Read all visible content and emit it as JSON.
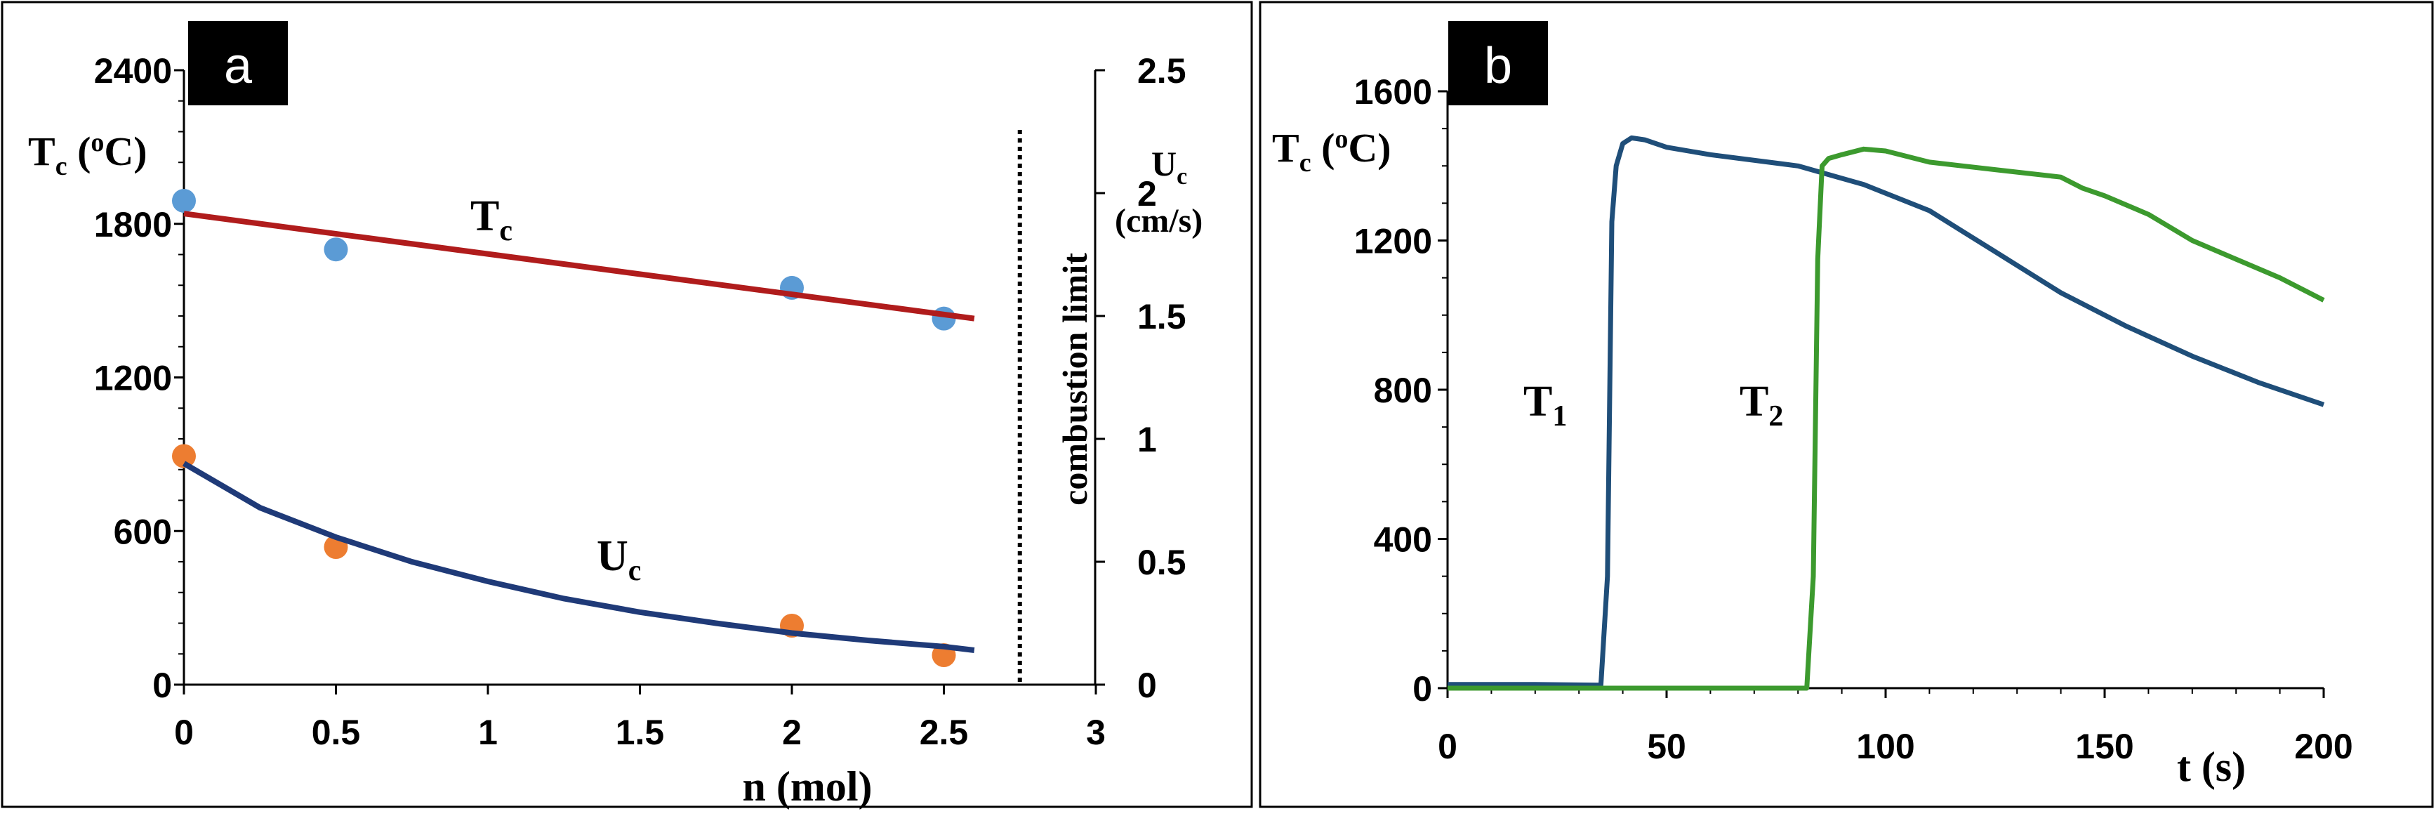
{
  "colors": {
    "tc_line": "#b01c1c",
    "uc_line": "#1f3a78",
    "tc_points": "#5b9bd5",
    "uc_points": "#ed7d31",
    "t1_line": "#1f4e79",
    "t2_line": "#3c9a2e"
  },
  "chart_data": [
    {
      "panel": "a",
      "type": "scatter",
      "xlabel": "n (mol)",
      "ylabel_left": "Tc (oC)",
      "ylabel_right": "Uc (cm/s)",
      "xlim": [
        0,
        3
      ],
      "ylim_left": [
        0,
        2400
      ],
      "ylim_right": [
        0,
        2.5
      ],
      "x_ticks": [
        "0",
        "0.5",
        "1",
        "1.5",
        "2",
        "2.5",
        "3"
      ],
      "y_left_ticks": [
        "0",
        "600",
        "1200",
        "1800",
        "2400"
      ],
      "y_right_ticks": [
        "0",
        "0.5",
        "1",
        "1.5",
        "2",
        "2.5"
      ],
      "series": [
        {
          "name": "Tc",
          "axis": "left",
          "kind": "points",
          "x": [
            0,
            0.5,
            2,
            2.5
          ],
          "y": [
            1890,
            1700,
            1550,
            1430
          ]
        },
        {
          "name": "Tc fit",
          "axis": "left",
          "kind": "line",
          "x": [
            0,
            2.6
          ],
          "y": [
            1840,
            1430
          ]
        },
        {
          "name": "Uc",
          "axis": "right",
          "kind": "points",
          "x": [
            0,
            0.5,
            2,
            2.5
          ],
          "y": [
            0.93,
            0.56,
            0.24,
            0.12
          ]
        },
        {
          "name": "Uc fit",
          "axis": "right",
          "kind": "line",
          "x": [
            0,
            0.25,
            0.5,
            0.75,
            1,
            1.25,
            1.5,
            1.75,
            2,
            2.25,
            2.5,
            2.6
          ],
          "y": [
            0.9,
            0.72,
            0.6,
            0.5,
            0.42,
            0.35,
            0.295,
            0.25,
            0.21,
            0.18,
            0.155,
            0.14
          ]
        }
      ],
      "annotations": {
        "tc_label": "T",
        "tc_sub": "c",
        "uc_label": "U",
        "uc_sub": "c",
        "limit_text": "combustion limit",
        "limit_x": 2.75
      }
    },
    {
      "panel": "b",
      "type": "line",
      "xlabel": "t (s)",
      "ylabel": "Tc (oC)",
      "xlim": [
        0,
        200
      ],
      "ylim": [
        0,
        1600
      ],
      "x_ticks": [
        "0",
        "50",
        "100",
        "150",
        "200"
      ],
      "y_ticks": [
        "0",
        "400",
        "800",
        "1200",
        "1600"
      ],
      "series": [
        {
          "name": "T1",
          "x": [
            0,
            20,
            35,
            36.5,
            37.5,
            38.5,
            40,
            42,
            45,
            50,
            60,
            80,
            95,
            110,
            125,
            140,
            155,
            170,
            185,
            200
          ],
          "y": [
            10,
            10,
            8,
            300,
            1250,
            1400,
            1460,
            1475,
            1470,
            1450,
            1430,
            1400,
            1350,
            1280,
            1170,
            1060,
            970,
            890,
            820,
            760
          ]
        },
        {
          "name": "T2",
          "x": [
            0,
            50,
            82,
            83.5,
            84.5,
            85.5,
            87,
            90,
            95,
            100,
            110,
            125,
            140,
            145,
            150,
            160,
            170,
            180,
            190,
            200
          ],
          "y": [
            0,
            0,
            0,
            300,
            1150,
            1400,
            1420,
            1430,
            1445,
            1440,
            1410,
            1390,
            1370,
            1340,
            1320,
            1270,
            1200,
            1150,
            1100,
            1040
          ]
        }
      ],
      "annotations": {
        "t1_label": "T",
        "t1_sub": "1",
        "t2_label": "T",
        "t2_sub": "2"
      }
    }
  ],
  "panels": {
    "a": {
      "tag": "a",
      "y_left_title": "T",
      "y_left_sub": "c",
      "y_left_units": " (",
      "y_left_sup": "o",
      "y_left_units_end": "C)",
      "y_right_title": "U",
      "y_right_sub": "c",
      "y_right_units": "(cm/s)",
      "x_title": "n (mol)"
    },
    "b": {
      "tag": "b",
      "y_title": "T",
      "y_sub": "c",
      "y_units": " (",
      "y_sup": "o",
      "y_units_end": "C)",
      "x_title": "t (s)"
    }
  }
}
